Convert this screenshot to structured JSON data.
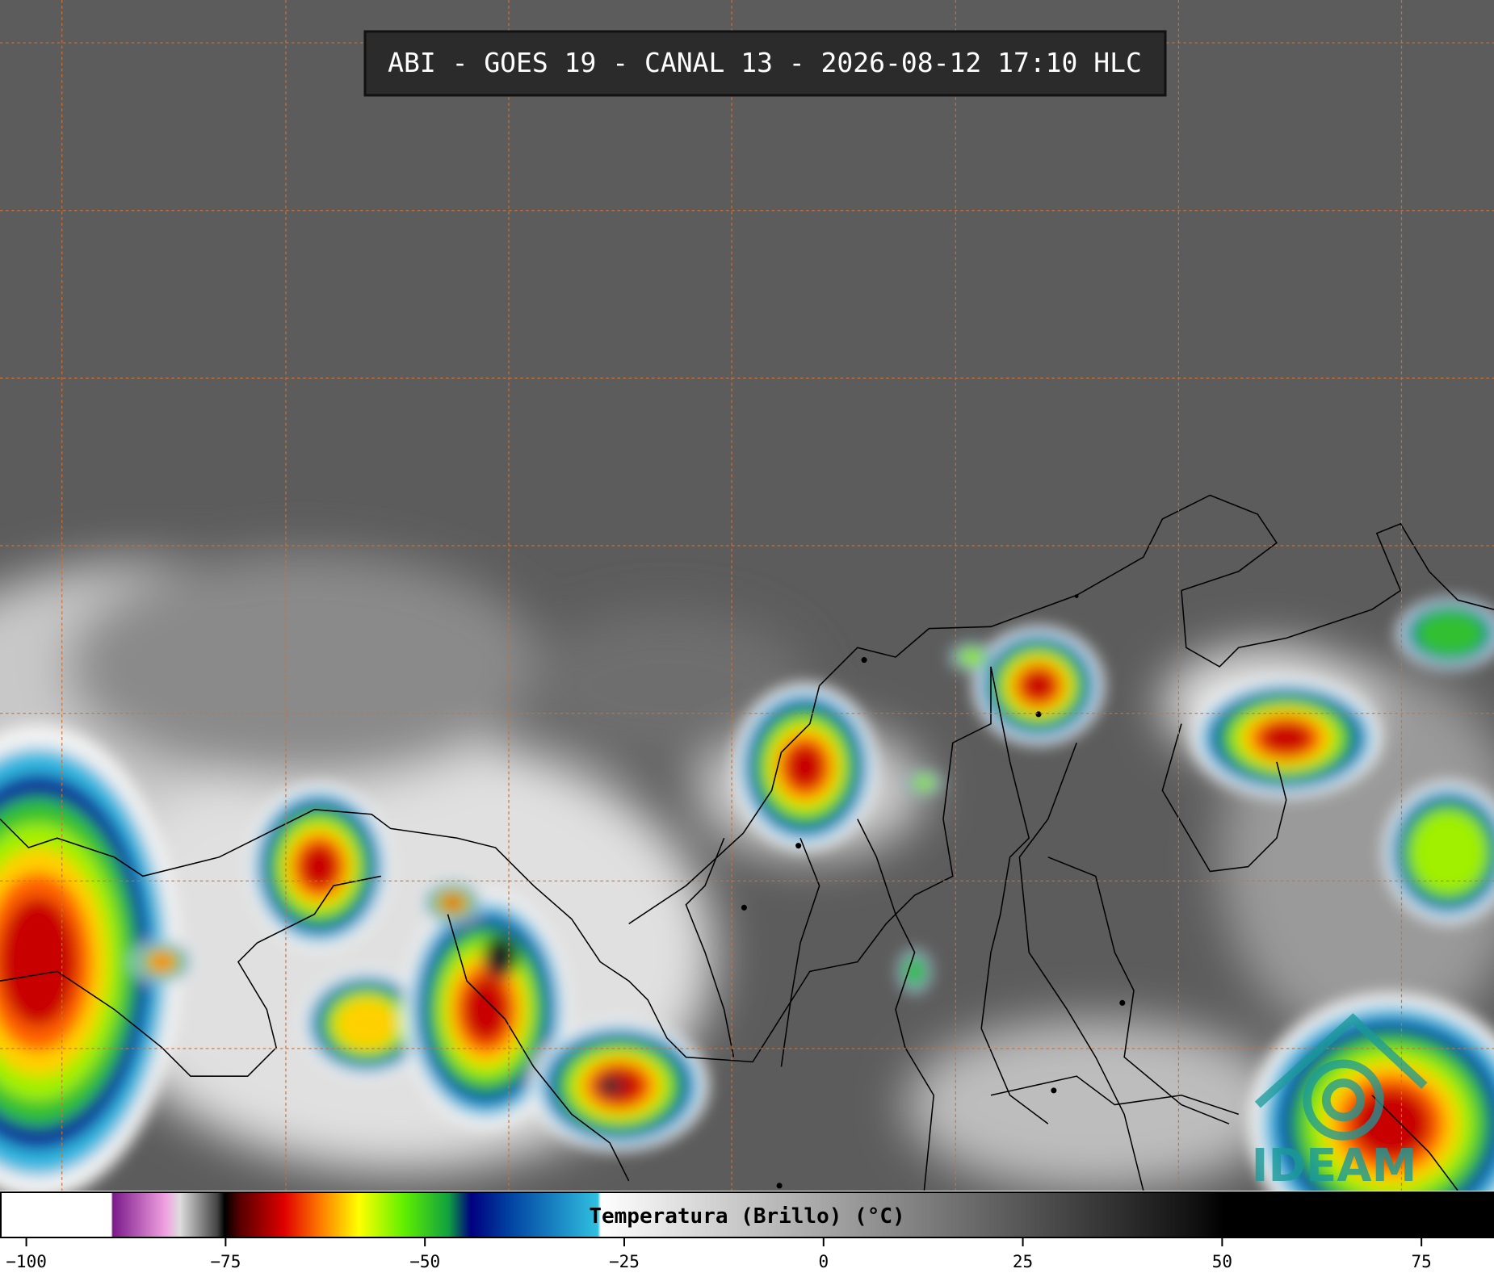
{
  "header": {
    "title": "ABI - GOES 19 - CANAL 13 - 2026-08-12 17:10 HLC"
  },
  "colorbar": {
    "label": "Temperatura (Brillo) (°C)",
    "xlim": [
      -103.3,
      84.1
    ],
    "xticks": [
      {
        "value": -100,
        "label": "−100"
      },
      {
        "value": -75,
        "label": "−75"
      },
      {
        "value": -50,
        "label": "−50"
      },
      {
        "value": -25,
        "label": "−25"
      },
      0,
      25,
      50,
      75
    ]
  },
  "logo": {
    "text": "IDEAM"
  }
}
